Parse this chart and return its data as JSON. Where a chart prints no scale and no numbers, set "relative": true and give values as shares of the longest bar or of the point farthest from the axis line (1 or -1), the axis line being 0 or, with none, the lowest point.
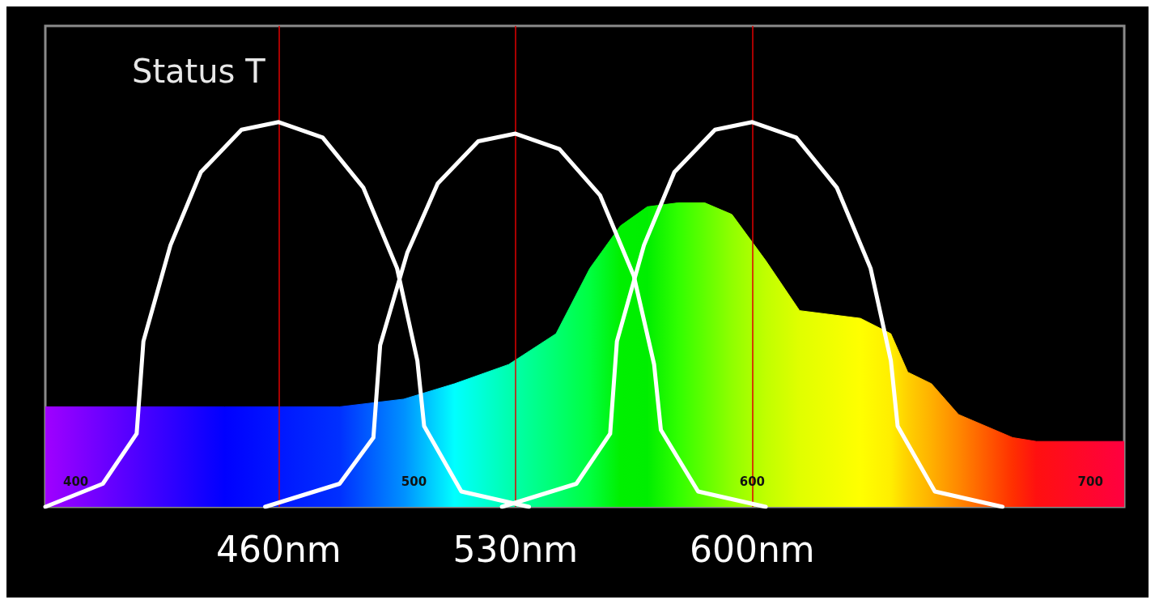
{
  "chart_data": {
    "type": "area",
    "title": "Status T",
    "relative": true,
    "xlim": [
      391,
      710
    ],
    "xticks": [
      400,
      500,
      600,
      700
    ],
    "grid": false,
    "marker": "none",
    "series": [
      {
        "x": [
          391,
          444,
          478,
          497,
          512,
          528,
          542,
          552,
          561,
          569,
          578,
          586,
          594,
          604,
          614,
          632,
          641,
          646,
          653,
          661,
          677,
          684,
          710
        ],
        "values": [
          0.26,
          0.26,
          0.26,
          0.28,
          0.32,
          0.37,
          0.45,
          0.62,
          0.73,
          0.78,
          0.79,
          0.79,
          0.76,
          0.64,
          0.51,
          0.49,
          0.45,
          0.35,
          0.32,
          0.24,
          0.18,
          0.17,
          0.17
        ],
        "colors": [
          "#a000ff",
          "#0000ff",
          "#0030ff",
          "#0090ff",
          "#00ffff",
          "#00ffb0",
          "#00ff70",
          "#00ff40",
          "#00f000",
          "#00ee00",
          "#30ff00",
          "#60ff00",
          "#90ff00",
          "#c0ff00",
          "#e0ff00",
          "#ffff00",
          "#ffee00",
          "#ffd000",
          "#ffb000",
          "#ff8800",
          "#ff3000",
          "#ff1010",
          "#ff0040"
        ]
      },
      {
        "type": "line",
        "color": "#ffffff",
        "x": [
          391,
          408,
          418,
          420,
          428,
          437,
          449,
          460,
          473,
          485,
          495,
          501,
          503,
          514,
          534
        ],
        "values": [
          0,
          0.06,
          0.19,
          0.43,
          0.68,
          0.87,
          0.98,
          1,
          0.96,
          0.83,
          0.62,
          0.38,
          0.21,
          0.04,
          0
        ]
      },
      {
        "type": "line",
        "color": "#ffffff",
        "x": [
          456,
          478,
          488,
          490,
          498,
          507,
          519,
          530,
          543,
          555,
          565,
          571,
          573,
          584,
          604
        ],
        "values": [
          0,
          0.06,
          0.18,
          0.42,
          0.66,
          0.84,
          0.95,
          0.97,
          0.93,
          0.81,
          0.6,
          0.37,
          0.2,
          0.04,
          0
        ]
      },
      {
        "type": "line",
        "color": "#ffffff",
        "x": [
          526,
          548,
          558,
          560,
          568,
          577,
          589,
          600,
          613,
          625,
          635,
          641,
          643,
          654,
          674
        ],
        "values": [
          0,
          0.06,
          0.19,
          0.43,
          0.68,
          0.87,
          0.98,
          1,
          0.96,
          0.83,
          0.62,
          0.38,
          0.21,
          0.04,
          0
        ]
      }
    ],
    "ref_lines": [
      {
        "axis": "x",
        "value": 460,
        "label": "460nm",
        "color": "#e00000"
      },
      {
        "axis": "x",
        "value": 530,
        "label": "530nm",
        "color": "#e00000"
      },
      {
        "axis": "x",
        "value": 600,
        "label": "600nm",
        "color": "#e00000"
      }
    ]
  }
}
